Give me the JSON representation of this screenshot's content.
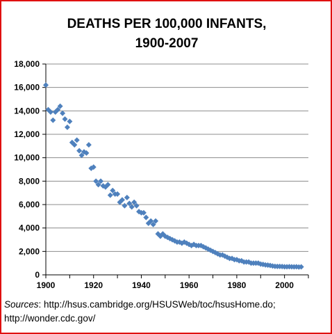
{
  "colors": {
    "border": "#e01010",
    "marker": "#4f81bd",
    "grid": "#8c8c8c"
  },
  "source": {
    "label": "Sources",
    "text": ": http://hsus.cambridge.org/HSUSWeb/toc/hsusHome.do; http://wonder.cdc.gov/"
  },
  "chart_data": {
    "type": "scatter",
    "title_lines": [
      "DEATHS PER 100,000 INFANTS,",
      "1900-2007"
    ],
    "xlim": [
      1900,
      2010
    ],
    "ylim": [
      0,
      18000
    ],
    "x_ticks": [
      1900,
      1920,
      1940,
      1960,
      1980,
      2000
    ],
    "y_ticks": [
      0,
      2000,
      4000,
      6000,
      8000,
      10000,
      12000,
      14000,
      16000,
      18000
    ],
    "y_tick_labels": [
      "0",
      "2,000",
      "4,000",
      "6,000",
      "8,000",
      "10,000",
      "12,000",
      "14,000",
      "16,000",
      "18,000"
    ],
    "grid": "horizontal",
    "legend": "none",
    "points": [
      [
        1900,
        16200
      ],
      [
        1901,
        14100
      ],
      [
        1902,
        13900
      ],
      [
        1903,
        13200
      ],
      [
        1904,
        13900
      ],
      [
        1905,
        14100
      ],
      [
        1906,
        14400
      ],
      [
        1907,
        13800
      ],
      [
        1908,
        13300
      ],
      [
        1909,
        12600
      ],
      [
        1910,
        13100
      ],
      [
        1911,
        11300
      ],
      [
        1912,
        11100
      ],
      [
        1913,
        11500
      ],
      [
        1914,
        10600
      ],
      [
        1915,
        10200
      ],
      [
        1916,
        10500
      ],
      [
        1917,
        10400
      ],
      [
        1918,
        11100
      ],
      [
        1919,
        9100
      ],
      [
        1920,
        9200
      ],
      [
        1921,
        8000
      ],
      [
        1922,
        7700
      ],
      [
        1923,
        8000
      ],
      [
        1924,
        7600
      ],
      [
        1925,
        7500
      ],
      [
        1926,
        7700
      ],
      [
        1927,
        6800
      ],
      [
        1928,
        7200
      ],
      [
        1929,
        6900
      ],
      [
        1930,
        6900
      ],
      [
        1931,
        6200
      ],
      [
        1932,
        6400
      ],
      [
        1933,
        5900
      ],
      [
        1934,
        6600
      ],
      [
        1935,
        6100
      ],
      [
        1936,
        5800
      ],
      [
        1937,
        6200
      ],
      [
        1938,
        5900
      ],
      [
        1939,
        5400
      ],
      [
        1940,
        5300
      ],
      [
        1941,
        5300
      ],
      [
        1942,
        4900
      ],
      [
        1943,
        4400
      ],
      [
        1944,
        4600
      ],
      [
        1945,
        4300
      ],
      [
        1946,
        4600
      ],
      [
        1947,
        3500
      ],
      [
        1948,
        3300
      ],
      [
        1949,
        3500
      ],
      [
        1950,
        3300
      ],
      [
        1951,
        3200
      ],
      [
        1952,
        3100
      ],
      [
        1953,
        3000
      ],
      [
        1954,
        2900
      ],
      [
        1955,
        2800
      ],
      [
        1956,
        2800
      ],
      [
        1957,
        2700
      ],
      [
        1958,
        2800
      ],
      [
        1959,
        2700
      ],
      [
        1960,
        2600
      ],
      [
        1961,
        2500
      ],
      [
        1962,
        2600
      ],
      [
        1963,
        2500
      ],
      [
        1964,
        2500
      ],
      [
        1965,
        2500
      ],
      [
        1966,
        2400
      ],
      [
        1967,
        2300
      ],
      [
        1968,
        2200
      ],
      [
        1969,
        2100
      ],
      [
        1970,
        2000
      ],
      [
        1971,
        1900
      ],
      [
        1972,
        1800
      ],
      [
        1973,
        1700
      ],
      [
        1974,
        1700
      ],
      [
        1975,
        1600
      ],
      [
        1976,
        1500
      ],
      [
        1977,
        1400
      ],
      [
        1978,
        1400
      ],
      [
        1979,
        1300
      ],
      [
        1980,
        1300
      ],
      [
        1981,
        1200
      ],
      [
        1982,
        1200
      ],
      [
        1983,
        1100
      ],
      [
        1984,
        1100
      ],
      [
        1985,
        1100
      ],
      [
        1986,
        1000
      ],
      [
        1987,
        1000
      ],
      [
        1988,
        1000
      ],
      [
        1989,
        1000
      ],
      [
        1990,
        920
      ],
      [
        1991,
        890
      ],
      [
        1992,
        850
      ],
      [
        1993,
        830
      ],
      [
        1994,
        800
      ],
      [
        1995,
        760
      ],
      [
        1996,
        730
      ],
      [
        1997,
        720
      ],
      [
        1998,
        720
      ],
      [
        1999,
        710
      ],
      [
        2000,
        690
      ],
      [
        2001,
        690
      ],
      [
        2002,
        700
      ],
      [
        2003,
        690
      ],
      [
        2004,
        680
      ],
      [
        2005,
        690
      ],
      [
        2006,
        670
      ],
      [
        2007,
        680
      ]
    ]
  }
}
